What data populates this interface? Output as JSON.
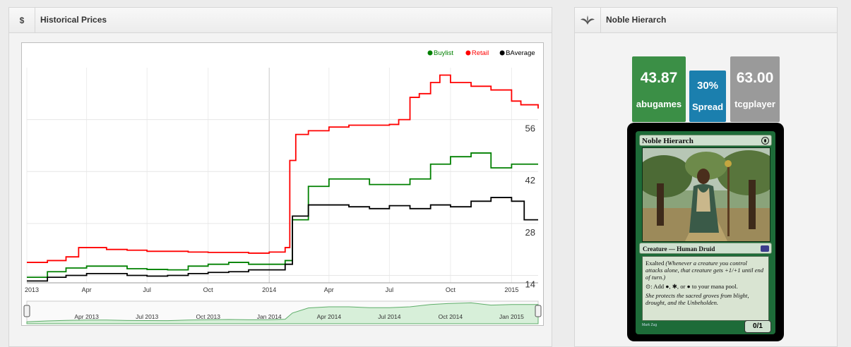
{
  "left_panel": {
    "icon": "dollar-icon",
    "icon_text": "$",
    "title": "Historical Prices"
  },
  "right_panel": {
    "icon": "plant-icon",
    "title": "Noble Hierarch"
  },
  "stats": {
    "buylist": {
      "value": "43.87",
      "label": "abugames",
      "color": "#3b8f46"
    },
    "spread": {
      "value": "30%",
      "label": "Spread",
      "color": "#1b7fae"
    },
    "retail": {
      "value": "63.00",
      "label": "tcgplayer",
      "color": "#9a9a9a"
    }
  },
  "card": {
    "name": "Noble Hierarch",
    "type_line": "Creature — Human Druid",
    "rules_1_keyword": "Exalted",
    "rules_1_reminder": "(Whenever a creature you control attacks alone, that creature gets +1/+1 until end of turn.)",
    "rules_2": "Add ●, ✱, or ● to your mana pool.",
    "flavor": "She protects the sacred groves from blight, drought, and the Unbeholden.",
    "pt": "0/1",
    "artist": "Mark Zug"
  },
  "chart_data": {
    "type": "line",
    "legend": [
      "Buylist",
      "Retail",
      "BAverage"
    ],
    "legend_position": "top-right",
    "colors": {
      "Buylist": "#008000",
      "Retail": "#ff0000",
      "BAverage": "#000000"
    },
    "y_ticks": [
      14,
      28,
      42,
      56
    ],
    "y_axis_side": "right",
    "x_range": [
      "2013-01-01",
      "2015-02-10"
    ],
    "y_range": [
      12,
      70
    ],
    "x_ticks": [
      "2013",
      "Apr",
      "Jul",
      "Oct",
      "2014",
      "Apr",
      "Jul",
      "Oct",
      "2015"
    ],
    "navigator_labels": [
      "Apr 2013",
      "Jul 2013",
      "Oct 2013",
      "Jan 2014",
      "Apr 2014",
      "Jul 2014",
      "Oct 2014",
      "Jan 2015"
    ],
    "grid": true,
    "series": [
      {
        "name": "Retail",
        "x": [
          "2013-01-01",
          "2013-02-01",
          "2013-03-01",
          "2013-03-20",
          "2013-05-01",
          "2013-06-01",
          "2013-07-01",
          "2013-08-01",
          "2013-09-01",
          "2013-10-01",
          "2013-11-01",
          "2013-12-01",
          "2014-01-01",
          "2014-01-25",
          "2014-02-01",
          "2014-02-10",
          "2014-03-01",
          "2014-04-01",
          "2014-05-01",
          "2014-06-01",
          "2014-07-01",
          "2014-07-15",
          "2014-08-01",
          "2014-08-15",
          "2014-09-01",
          "2014-09-15",
          "2014-10-01",
          "2014-11-01",
          "2014-12-01",
          "2015-01-01",
          "2015-01-15",
          "2015-02-10"
        ],
        "values": [
          17.5,
          18,
          19,
          21.5,
          21,
          20.8,
          20.5,
          20.5,
          20.3,
          20.2,
          20.2,
          20,
          20.3,
          21.5,
          45,
          52,
          53,
          54,
          54.5,
          54.5,
          54.7,
          56,
          62,
          63,
          66,
          68,
          66,
          65,
          64,
          61,
          60,
          59
        ]
      },
      {
        "name": "Buylist",
        "x": [
          "2013-01-01",
          "2013-02-01",
          "2013-03-01",
          "2013-04-01",
          "2013-05-01",
          "2013-06-01",
          "2013-07-01",
          "2013-08-01",
          "2013-09-01",
          "2013-10-01",
          "2013-11-01",
          "2013-12-01",
          "2014-01-01",
          "2014-01-25",
          "2014-02-05",
          "2014-03-01",
          "2014-04-01",
          "2014-05-01",
          "2014-06-01",
          "2014-07-01",
          "2014-08-01",
          "2014-09-01",
          "2014-10-01",
          "2014-11-01",
          "2014-12-01",
          "2015-01-01",
          "2015-02-10"
        ],
        "values": [
          13.5,
          15,
          16,
          16.5,
          16.5,
          15.8,
          15.6,
          15.5,
          16.5,
          17,
          17.5,
          17,
          17,
          18,
          29,
          38,
          40,
          40,
          38.5,
          38.5,
          40,
          44,
          46,
          47,
          43,
          44,
          44
        ]
      },
      {
        "name": "BAverage",
        "x": [
          "2013-01-01",
          "2013-02-01",
          "2013-03-01",
          "2013-04-01",
          "2013-05-01",
          "2013-06-01",
          "2013-07-01",
          "2013-08-01",
          "2013-09-01",
          "2013-10-01",
          "2013-11-01",
          "2013-12-01",
          "2014-01-01",
          "2014-01-25",
          "2014-02-05",
          "2014-03-01",
          "2014-04-01",
          "2014-05-01",
          "2014-06-01",
          "2014-07-01",
          "2014-08-01",
          "2014-09-01",
          "2014-10-01",
          "2014-11-01",
          "2014-12-01",
          "2015-01-01",
          "2015-01-20",
          "2015-02-10"
        ],
        "values": [
          12.5,
          13.5,
          14,
          14.5,
          14.5,
          14,
          13.8,
          14,
          14.5,
          14.8,
          15,
          15.5,
          15.5,
          17,
          30,
          33,
          33,
          32.5,
          32,
          32.8,
          32,
          33,
          32.5,
          34,
          35,
          34,
          29,
          29
        ]
      }
    ]
  }
}
